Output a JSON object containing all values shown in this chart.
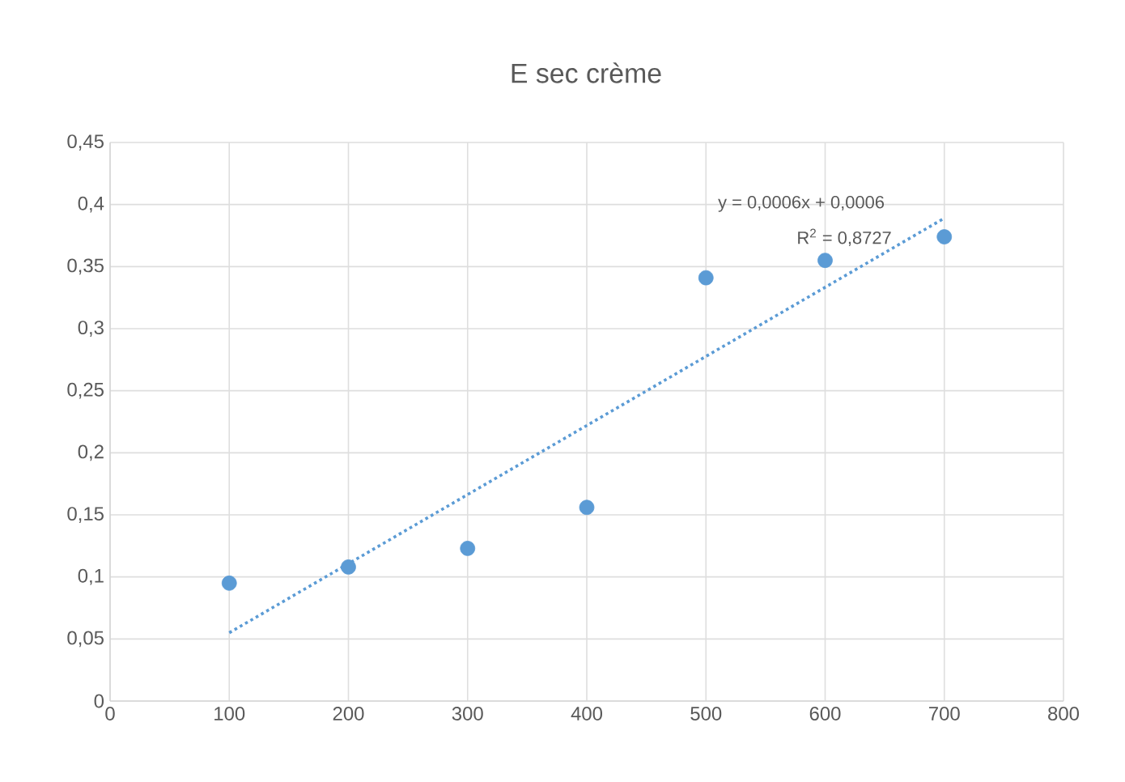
{
  "chart_data": {
    "type": "scatter",
    "title": "E sec crème",
    "series": [
      {
        "color": "#5b9bd5",
        "marker": "circle",
        "x": [
          100,
          200,
          300,
          400,
          500,
          600,
          700
        ],
        "values": [
          0.095,
          0.108,
          0.123,
          0.156,
          0.341,
          0.355,
          0.374
        ]
      },
      {
        "type": "line",
        "color": "#5b9bd5",
        "line_style": "dotted",
        "marker": "none",
        "x": [
          100,
          700
        ],
        "values": [
          0.055,
          0.389
        ]
      }
    ],
    "xlim": [
      0,
      800
    ],
    "xticks": [
      0,
      100,
      200,
      300,
      400,
      500,
      600,
      700,
      800
    ],
    "ylim": [
      0,
      0.45
    ],
    "yticks": [
      {
        "value": 0,
        "label": "0"
      },
      {
        "value": 0.05,
        "label": "0,05"
      },
      {
        "value": 0.1,
        "label": "0,1"
      },
      {
        "value": 0.15,
        "label": "0,15"
      },
      {
        "value": 0.2,
        "label": "0,2"
      },
      {
        "value": 0.25,
        "label": "0,25"
      },
      {
        "value": 0.3,
        "label": "0,3"
      },
      {
        "value": 0.35,
        "label": "0,35"
      },
      {
        "value": 0.4,
        "label": "0,4"
      },
      {
        "value": 0.45,
        "label": "0,45"
      }
    ],
    "annotations": [
      "y = 0,0006x + 0,0006",
      "R$^{2}$ = 0,8727"
    ],
    "grid": true
  }
}
